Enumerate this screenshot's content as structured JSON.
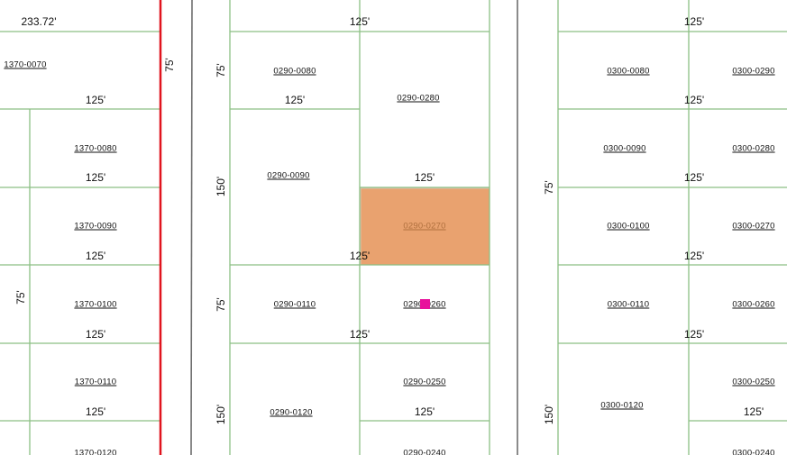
{
  "colors": {
    "parcel_line": "#8cbf84",
    "boundary_red": "#e0141e",
    "road_line": "#6e6e6e",
    "selected_fill": "#e9a26f",
    "marker": "#e8129c"
  },
  "selected_parcel": "0290-0270",
  "labels": [
    "233.72'",
    "1370-0070",
    "125'",
    "1370-0080",
    "125'",
    "1370-0090",
    "125'",
    "75'",
    "1370-0100",
    "125'",
    "1370-0110",
    "125'",
    "1370-0120",
    "75'",
    "75'",
    "150'",
    "75'",
    "150'",
    "125'",
    "0290-0080",
    "125'",
    "0290-0280",
    "0290-0090",
    "125'",
    "0290-0270",
    "125'",
    "0290-0110",
    "0290-0260",
    "125'",
    "0290-0250",
    "125'",
    "0290-0120",
    "0290-0240",
    "125'",
    "0300-0080",
    "0300-0290",
    "125'",
    "0300-0090",
    "0300-0280",
    "75'",
    "125'",
    "0300-0100",
    "0300-0270",
    "125'",
    "0300-0110",
    "0300-0260",
    "125'",
    "0300-0120",
    "0300-0250",
    "150'",
    "125'",
    "0300-0240"
  ]
}
